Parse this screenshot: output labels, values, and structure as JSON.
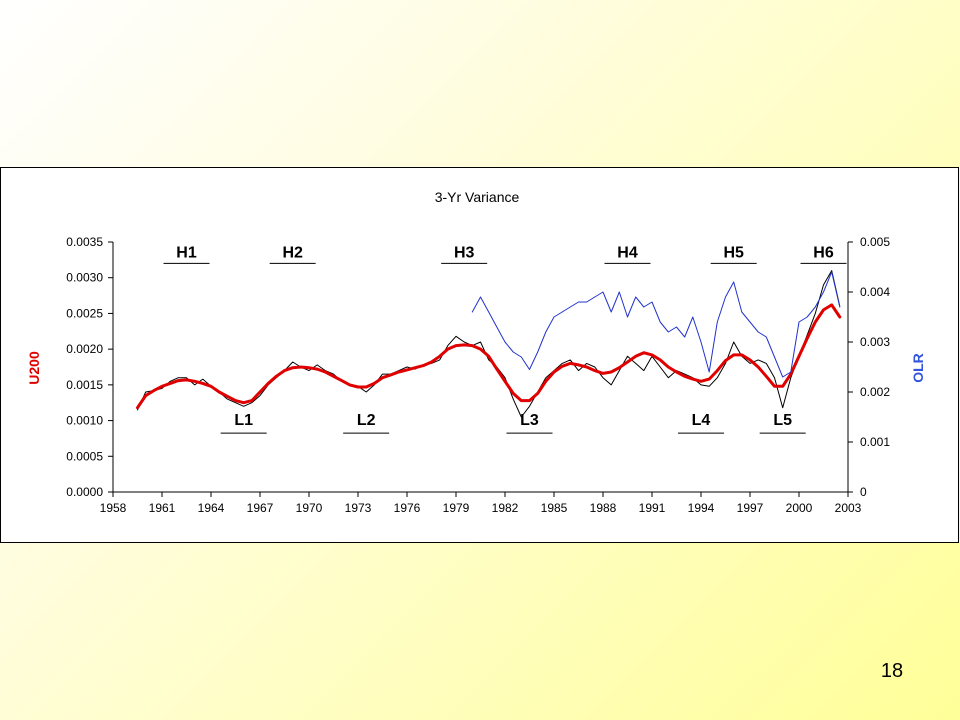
{
  "slide": {
    "page_number": "18"
  },
  "colors": {
    "u200": "#000000",
    "smooth": "#e00000",
    "olr": "#2233cc",
    "y_label_left": "#e00000",
    "y_label_right": "#3355dd"
  },
  "chart_data": {
    "type": "line",
    "title": "3-Yr Variance",
    "xlabel": "",
    "ylabel": "U200",
    "y2label": "OLR",
    "xlim": [
      1958,
      2003
    ],
    "ylim": [
      0,
      0.0035
    ],
    "y2lim": [
      0,
      0.005
    ],
    "x_ticks": [
      "1958",
      "1961",
      "1964",
      "1967",
      "1970",
      "1973",
      "1976",
      "1979",
      "1982",
      "1985",
      "1988",
      "1991",
      "1994",
      "1997",
      "2000",
      "2003"
    ],
    "y_ticks": [
      "0.0000",
      "0.0005",
      "0.0010",
      "0.0015",
      "0.0020",
      "0.0025",
      "0.0030",
      "0.0035"
    ],
    "y2_ticks": [
      "0",
      "0.001",
      "0.002",
      "0.003",
      "0.004",
      "0.005"
    ],
    "grid": false,
    "legend": "none",
    "annotations": [
      {
        "label": "H1",
        "x": 1962.5,
        "y": 0.0032,
        "position": "above"
      },
      {
        "label": "H2",
        "x": 1969.0,
        "y": 0.0032,
        "position": "above"
      },
      {
        "label": "H3",
        "x": 1979.5,
        "y": 0.0032,
        "position": "above"
      },
      {
        "label": "H4",
        "x": 1989.5,
        "y": 0.0032,
        "position": "above"
      },
      {
        "label": "H5",
        "x": 1996.0,
        "y": 0.0032,
        "position": "above"
      },
      {
        "label": "H6",
        "x": 2001.5,
        "y": 0.0032,
        "position": "above"
      },
      {
        "label": "L1",
        "x": 1966.0,
        "y": 0.00088,
        "position": "below"
      },
      {
        "label": "L2",
        "x": 1973.5,
        "y": 0.00088,
        "position": "below"
      },
      {
        "label": "L3",
        "x": 1983.5,
        "y": 0.00088,
        "position": "below"
      },
      {
        "label": "L4",
        "x": 1994.0,
        "y": 0.00088,
        "position": "below"
      },
      {
        "label": "L5",
        "x": 1999.0,
        "y": 0.00088,
        "position": "below"
      }
    ],
    "series": [
      {
        "axis": "left",
        "color": "#000000",
        "width": 1,
        "x": [
          1959.5,
          1960.0,
          1960.5,
          1961.0,
          1961.5,
          1962.0,
          1962.5,
          1963.0,
          1963.5,
          1964.0,
          1964.5,
          1965.0,
          1965.5,
          1966.0,
          1966.5,
          1967.0,
          1967.5,
          1968.0,
          1968.5,
          1969.0,
          1969.5,
          1970.0,
          1970.5,
          1971.0,
          1971.5,
          1972.0,
          1972.5,
          1973.0,
          1973.5,
          1974.0,
          1974.5,
          1975.0,
          1975.5,
          1976.0,
          1976.5,
          1977.0,
          1977.5,
          1978.0,
          1978.5,
          1979.0,
          1979.5,
          1980.0,
          1980.5,
          1981.0,
          1981.5,
          1982.0,
          1982.5,
          1983.0,
          1983.5,
          1984.0,
          1984.5,
          1985.0,
          1985.5,
          1986.0,
          1986.5,
          1987.0,
          1987.5,
          1988.0,
          1988.5,
          1989.0,
          1989.5,
          1990.0,
          1990.5,
          1991.0,
          1991.5,
          1992.0,
          1992.5,
          1993.0,
          1993.5,
          1994.0,
          1994.5,
          1995.0,
          1995.5,
          1996.0,
          1996.5,
          1997.0,
          1997.5,
          1998.0,
          1998.5,
          1999.0,
          1999.5,
          2000.0,
          2000.5,
          2001.0,
          2001.5,
          2002.0,
          2002.5
        ],
        "values": [
          0.00115,
          0.0014,
          0.00142,
          0.00145,
          0.00155,
          0.0016,
          0.0016,
          0.0015,
          0.00158,
          0.00148,
          0.0014,
          0.0013,
          0.00125,
          0.0012,
          0.00125,
          0.00135,
          0.0015,
          0.0016,
          0.0017,
          0.00182,
          0.00175,
          0.0017,
          0.00178,
          0.0017,
          0.00165,
          0.00155,
          0.0015,
          0.00148,
          0.0014,
          0.0015,
          0.00165,
          0.00165,
          0.0017,
          0.00175,
          0.00172,
          0.00178,
          0.0018,
          0.00185,
          0.00205,
          0.00218,
          0.0021,
          0.00205,
          0.0021,
          0.00185,
          0.00175,
          0.0016,
          0.0013,
          0.00105,
          0.0012,
          0.0014,
          0.0016,
          0.0017,
          0.0018,
          0.00185,
          0.0017,
          0.0018,
          0.00175,
          0.0016,
          0.0015,
          0.0017,
          0.0019,
          0.0018,
          0.0017,
          0.0019,
          0.00175,
          0.0016,
          0.0017,
          0.00165,
          0.0016,
          0.0015,
          0.00148,
          0.0016,
          0.0018,
          0.0021,
          0.0019,
          0.0018,
          0.00185,
          0.0018,
          0.0016,
          0.00118,
          0.0016,
          0.0019,
          0.0022,
          0.0025,
          0.0029,
          0.0031,
          0.0026
        ]
      },
      {
        "axis": "left",
        "color": "#e00000",
        "width": 3,
        "x": [
          1959.5,
          1960.0,
          1960.5,
          1961.0,
          1961.5,
          1962.0,
          1962.5,
          1963.0,
          1963.5,
          1964.0,
          1964.5,
          1965.0,
          1965.5,
          1966.0,
          1966.5,
          1967.0,
          1967.5,
          1968.0,
          1968.5,
          1969.0,
          1969.5,
          1970.0,
          1970.5,
          1971.0,
          1971.5,
          1972.0,
          1972.5,
          1973.0,
          1973.5,
          1974.0,
          1974.5,
          1975.0,
          1975.5,
          1976.0,
          1976.5,
          1977.0,
          1977.5,
          1978.0,
          1978.5,
          1979.0,
          1979.5,
          1980.0,
          1980.5,
          1981.0,
          1981.5,
          1982.0,
          1982.5,
          1983.0,
          1983.5,
          1984.0,
          1984.5,
          1985.0,
          1985.5,
          1986.0,
          1986.5,
          1987.0,
          1987.5,
          1988.0,
          1988.5,
          1989.0,
          1989.5,
          1990.0,
          1990.5,
          1991.0,
          1991.5,
          1992.0,
          1992.5,
          1993.0,
          1993.5,
          1994.0,
          1994.5,
          1995.0,
          1995.5,
          1996.0,
          1996.5,
          1997.0,
          1997.5,
          1998.0,
          1998.5,
          1999.0,
          1999.5,
          2000.0,
          2000.5,
          2001.0,
          2001.5,
          2002.0,
          2002.5
        ],
        "values": [
          0.00118,
          0.00135,
          0.00142,
          0.00148,
          0.00152,
          0.00156,
          0.00157,
          0.00155,
          0.00152,
          0.00148,
          0.0014,
          0.00134,
          0.00128,
          0.00125,
          0.00128,
          0.0014,
          0.00152,
          0.00162,
          0.0017,
          0.00174,
          0.00175,
          0.00174,
          0.00172,
          0.00168,
          0.00162,
          0.00156,
          0.0015,
          0.00147,
          0.00147,
          0.00152,
          0.0016,
          0.00164,
          0.00168,
          0.00171,
          0.00174,
          0.00177,
          0.00182,
          0.0019,
          0.002,
          0.00205,
          0.00206,
          0.00205,
          0.002,
          0.0019,
          0.00172,
          0.00155,
          0.00138,
          0.00128,
          0.00128,
          0.00138,
          0.00155,
          0.00168,
          0.00176,
          0.0018,
          0.00178,
          0.00175,
          0.0017,
          0.00166,
          0.00168,
          0.00174,
          0.00182,
          0.0019,
          0.00195,
          0.00192,
          0.00185,
          0.00175,
          0.00168,
          0.00162,
          0.00158,
          0.00155,
          0.00158,
          0.0017,
          0.00184,
          0.00192,
          0.00192,
          0.00185,
          0.00175,
          0.00162,
          0.00148,
          0.00148,
          0.00165,
          0.0019,
          0.00215,
          0.00238,
          0.00255,
          0.00262,
          0.00245
        ]
      },
      {
        "axis": "right",
        "color": "#2233cc",
        "width": 1,
        "x": [
          1980.0,
          1980.5,
          1981.0,
          1981.5,
          1982.0,
          1982.5,
          1983.0,
          1983.5,
          1984.0,
          1984.5,
          1985.0,
          1985.5,
          1986.0,
          1986.5,
          1987.0,
          1987.5,
          1988.0,
          1988.5,
          1989.0,
          1989.5,
          1990.0,
          1990.5,
          1991.0,
          1991.5,
          1992.0,
          1992.5,
          1993.0,
          1993.5,
          1994.0,
          1994.5,
          1995.0,
          1995.5,
          1996.0,
          1996.5,
          1997.0,
          1997.5,
          1998.0,
          1998.5,
          1999.0,
          1999.5,
          2000.0,
          2000.5,
          2001.0,
          2001.5,
          2002.0,
          2002.5
        ],
        "values": [
          0.0036,
          0.0039,
          0.0036,
          0.0033,
          0.003,
          0.0028,
          0.0027,
          0.00245,
          0.0028,
          0.0032,
          0.0035,
          0.0036,
          0.0037,
          0.0038,
          0.0038,
          0.0039,
          0.004,
          0.0036,
          0.004,
          0.0035,
          0.0039,
          0.0037,
          0.0038,
          0.0034,
          0.0032,
          0.0033,
          0.0031,
          0.0035,
          0.003,
          0.0024,
          0.0034,
          0.0039,
          0.0042,
          0.0036,
          0.0034,
          0.0032,
          0.0031,
          0.0027,
          0.0023,
          0.0024,
          0.0034,
          0.0035,
          0.0037,
          0.004,
          0.0044,
          0.0037
        ]
      }
    ]
  }
}
